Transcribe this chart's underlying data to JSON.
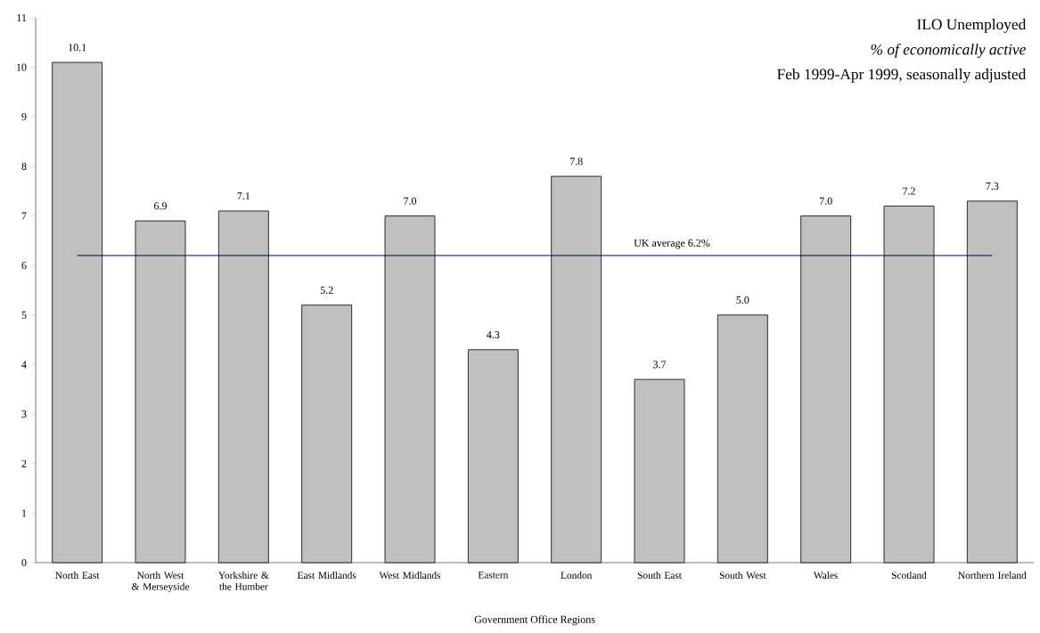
{
  "chart_data": {
    "type": "bar",
    "title": "ILO Unemployed",
    "subtitle": "% of economically active",
    "annotations": [
      "Feb 1999-Apr 1999, seasonally adjusted"
    ],
    "xlabel": "Government Office Regions",
    "categories": [
      "North East",
      "North West & Merseyside",
      "Yorkshire & the Humber",
      "East Midlands",
      "West Midlands",
      "Eastern",
      "London",
      "South East",
      "South West",
      "Wales",
      "Scotland",
      "Northern Ireland"
    ],
    "values": [
      10.1,
      6.9,
      7.1,
      5.2,
      7.0,
      4.3,
      7.8,
      3.7,
      5.0,
      7.0,
      7.2,
      7.3
    ],
    "color": "#c0c0c0",
    "ylim": [
      0,
      11
    ],
    "yticks": [
      0,
      1,
      2,
      3,
      4,
      5,
      6,
      7,
      8,
      9,
      10,
      11
    ],
    "ref_lines": [
      {
        "axis": "y",
        "value": 6.2,
        "label": "UK average 6.2%",
        "color": "#000066"
      }
    ],
    "value_labels": [
      "10.1",
      "6.9",
      "7.1",
      "5.2",
      "7.0",
      "4.3",
      "7.8",
      "3.7",
      "5.0",
      "7.0",
      "7.2",
      "7.3"
    ],
    "grid": false
  }
}
